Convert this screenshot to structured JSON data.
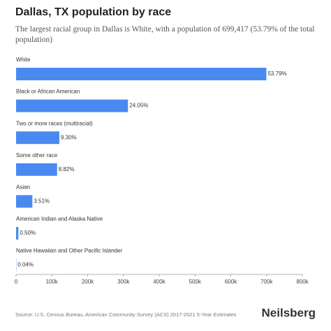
{
  "chart_data": {
    "type": "barh",
    "title": "Dallas, TX population by race",
    "subtitle": "The largest racial group in Dallas is White, with a population of 699,417 (53.79% of the total population)",
    "categories": [
      "White",
      "Black or African American",
      "Two or more races (multiracial)",
      "Some other race",
      "Asian",
      "American Indian and Alaska Native",
      "Native Hawaiian and Other Pacific Islander"
    ],
    "values": [
      699417,
      312700,
      120900,
      114700,
      45600,
      6500,
      520
    ],
    "value_labels": [
      "53.79%",
      "24.05%",
      "9.30%",
      "8.82%",
      "3.51%",
      "0.50%",
      "0.04%"
    ],
    "color": "#4a8af0",
    "xlim": [
      0,
      800000
    ],
    "xticks": [
      0,
      {
        "value": 100000,
        "label": "100k"
      },
      {
        "value": 200000,
        "label": "200k"
      },
      {
        "value": 300000,
        "label": "300k"
      },
      {
        "value": 400000,
        "label": "400k"
      },
      {
        "value": 500000,
        "label": "500k"
      },
      {
        "value": 600000,
        "label": "600k"
      },
      {
        "value": 700000,
        "label": "700k"
      },
      {
        "value": 800000,
        "label": "800k"
      }
    ],
    "source": "Source: U.S. Census Bureau, American Community Survey (ACS) 2017-2021 5-Year Estimates",
    "brand": "Neilsberg"
  }
}
